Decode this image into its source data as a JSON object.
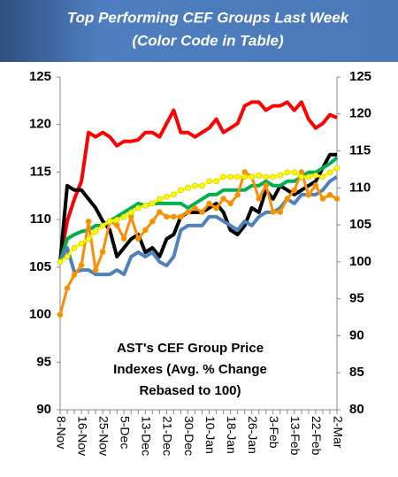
{
  "chart_data": {
    "type": "line",
    "title": "Top Performing CEF Groups Last Week",
    "subtitle": "(Color Code in Table)",
    "annotation": [
      "AST's CEF Group Price",
      "Indexes (Avg. % Change",
      "Rebased to 100)"
    ],
    "categories": [
      "8-Nov",
      null,
      null,
      "16-Nov",
      null,
      null,
      "25-Nov",
      null,
      null,
      "5-Dec",
      null,
      null,
      "13-Dec",
      null,
      null,
      "21-Dec",
      null,
      null,
      "30-Dec",
      null,
      null,
      "10-Jan",
      null,
      null,
      "18-Jan",
      null,
      null,
      "26-Jan",
      null,
      null,
      "3-Feb",
      null,
      null,
      "13-Feb",
      null,
      null,
      "22-Feb",
      null,
      null,
      "2-Mar"
    ],
    "ylim": [
      90,
      125
    ],
    "yticks": [
      90,
      95,
      100,
      105,
      110,
      115,
      120,
      125
    ],
    "y2lim": [
      80,
      125
    ],
    "y2ticks": [
      80,
      85,
      90,
      95,
      100,
      105,
      110,
      115,
      120,
      125
    ],
    "series": [
      {
        "color": "#ff0000",
        "axis": "y2",
        "values": [
          100,
          105.5,
          108.5,
          110.9,
          117.5,
          116.9,
          117.5,
          116.9,
          115.7,
          116.3,
          116.3,
          116.5,
          117.5,
          117.5,
          116.9,
          118.7,
          120.5,
          117.5,
          117.5,
          116.9,
          117.5,
          118.1,
          119.3,
          117.5,
          118.1,
          118.7,
          121.1,
          121.6,
          121.6,
          120.5,
          121.1,
          121.1,
          121.6,
          120.5,
          121.6,
          119.3,
          118.1,
          118.7,
          119.9,
          119.5
        ]
      },
      {
        "color": "#000000",
        "axis": "y2",
        "values": [
          100,
          110.3,
          109.7,
          109.7,
          108.5,
          107.3,
          105.5,
          104.3,
          100.7,
          101.9,
          103.1,
          103.7,
          101.3,
          101.9,
          100.7,
          103.1,
          103.7,
          106.1,
          106.7,
          106.7,
          106.7,
          107.3,
          107.9,
          106.7,
          104.3,
          103.7,
          104.9,
          107.3,
          106.7,
          109.7,
          108.5,
          110.3,
          109.7,
          109.1,
          109.7,
          110.3,
          110.9,
          112.7,
          114.5,
          114.5
        ]
      },
      {
        "color": "#00b050",
        "axis": "y2",
        "values": [
          100,
          103.1,
          103.7,
          104.1,
          104.3,
          104.9,
          104.9,
          105.5,
          106.1,
          106.7,
          107.3,
          107.9,
          107.6,
          107.9,
          107.9,
          107.9,
          107.9,
          107.9,
          107.3,
          107.9,
          108.5,
          109.1,
          109.1,
          109.7,
          109.7,
          109.7,
          109.7,
          110.3,
          110.3,
          110.9,
          110.3,
          110.3,
          110.9,
          110.9,
          111.5,
          112.1,
          112.1,
          112.7,
          113.3,
          114.1
        ]
      },
      {
        "color": "#4f81bd",
        "axis": "y2",
        "values": [
          100,
          101.9,
          98.6,
          98.9,
          98.9,
          98.3,
          98.3,
          98.3,
          98.9,
          98.3,
          100.7,
          101.3,
          100.7,
          101.3,
          100,
          99.5,
          100.7,
          104.3,
          104.9,
          104.9,
          104.9,
          106.1,
          106.1,
          105.5,
          104.9,
          104.3,
          105.5,
          104.9,
          106.1,
          106.7,
          106.7,
          107.3,
          108.5,
          107.9,
          109.1,
          109.1,
          109.1,
          109.7,
          110.9,
          111.5
        ]
      },
      {
        "color": "#ff8c00",
        "axis": "y",
        "marker": true,
        "values": [
          100,
          102.8,
          104.2,
          105.2,
          109.8,
          104.7,
          106.6,
          109.8,
          109.4,
          108.0,
          110.3,
          108.0,
          108.9,
          109.8,
          110.8,
          110.3,
          110.3,
          110.3,
          110.8,
          111.2,
          110.8,
          111.7,
          111.2,
          112.2,
          111.7,
          112.6,
          115.0,
          114.5,
          112.2,
          113.6,
          110.8,
          110.8,
          112.2,
          113.1,
          115.0,
          112.6,
          113.6,
          112.2,
          112.6,
          112.2
        ]
      },
      {
        "color": "#ffff00",
        "axis": "y2",
        "marker": true,
        "values": [
          100,
          100.7,
          101.9,
          102.5,
          103.1,
          104.1,
          104.9,
          105.5,
          105.7,
          106.1,
          106.7,
          107.3,
          107.6,
          107.9,
          108.5,
          108.8,
          109.1,
          109.7,
          110.0,
          110.3,
          110.3,
          110.9,
          110.9,
          111.5,
          111.5,
          111.5,
          111.5,
          111.5,
          111.7,
          111.5,
          111.5,
          111.7,
          112.1,
          112.1,
          111.5,
          111.5,
          111.7,
          111.5,
          112.1,
          112.7
        ]
      }
    ]
  }
}
